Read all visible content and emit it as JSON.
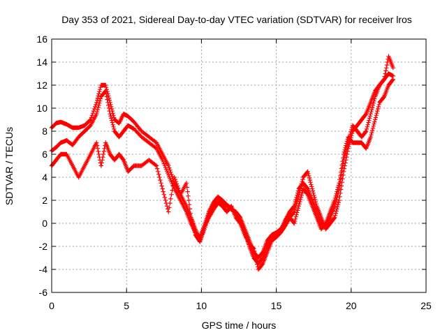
{
  "chart_data": {
    "type": "scatter",
    "title": "Day 353 of 2021, Sidereal Day-to-day VTEC variation (SDTVAR) for receiver lros",
    "xlabel": "GPS time / hours",
    "ylabel": "SDTVAR / TECUs",
    "xlim": [
      0,
      25
    ],
    "ylim": [
      -6,
      16
    ],
    "x_ticks": [
      0,
      5,
      10,
      15,
      20,
      25
    ],
    "y_ticks": [
      -6,
      -4,
      -2,
      0,
      2,
      4,
      6,
      8,
      10,
      12,
      14,
      16
    ],
    "grid": true,
    "marker": "+",
    "color": "#ff0000",
    "series": [
      {
        "x": [
          0.0,
          0.3,
          0.6,
          1.0,
          1.4,
          1.8,
          2.2,
          2.6,
          3.0,
          3.3,
          3.6,
          3.9,
          4.2,
          4.5,
          4.8,
          5.1,
          5.5,
          6.0,
          6.5,
          7.0,
          7.4,
          7.8,
          8.2,
          8.6,
          9.0,
          9.3,
          9.6,
          9.9,
          10.2,
          10.5,
          10.8,
          11.1,
          11.4,
          11.7,
          12.0,
          12.3,
          12.6,
          12.9,
          13.2,
          13.5,
          13.8,
          14.1,
          14.4,
          14.7,
          15.0,
          15.3,
          15.6,
          15.9,
          16.2,
          16.5,
          16.8,
          17.1,
          17.4,
          17.7,
          18.0,
          18.3,
          18.6,
          18.9,
          19.2,
          19.5,
          19.8,
          20.1,
          20.4,
          20.7,
          21.0,
          21.3,
          21.6,
          21.9,
          22.2,
          22.5,
          22.8
        ],
        "y": [
          8.3,
          8.7,
          8.8,
          8.6,
          8.3,
          8.3,
          8.5,
          9.0,
          10.5,
          12.0,
          12.0,
          10.5,
          9.0,
          8.7,
          9.5,
          9.3,
          8.8,
          8.0,
          7.5,
          7.0,
          6.0,
          5.0,
          3.5,
          2.5,
          1.5,
          0.5,
          -0.5,
          -1.5,
          -0.5,
          0.8,
          1.5,
          2.0,
          1.8,
          1.5,
          1.2,
          1.0,
          0.5,
          -0.5,
          -1.5,
          -2.5,
          -3.0,
          -2.5,
          -1.5,
          -1.0,
          -0.8,
          -0.5,
          0.0,
          0.5,
          1.0,
          2.5,
          4.0,
          4.5,
          3.0,
          1.5,
          0.5,
          -0.5,
          0.0,
          0.5,
          2.0,
          4.5,
          6.5,
          8.0,
          8.5,
          9.0,
          9.5,
          10.5,
          11.5,
          12.0,
          12.5,
          13.0,
          12.8
        ]
      },
      {
        "x": [
          0.0,
          0.3,
          0.6,
          1.0,
          1.4,
          1.8,
          2.2,
          2.6,
          3.0,
          3.3,
          3.6,
          3.9,
          4.2,
          4.5,
          4.8,
          5.1,
          5.5,
          6.0,
          6.5,
          7.0,
          7.4,
          7.8,
          8.2,
          8.6,
          9.0,
          9.3,
          9.6,
          9.9,
          10.2,
          10.5,
          10.8,
          11.1,
          11.4,
          11.7,
          12.0,
          12.3,
          12.6,
          12.9,
          13.2,
          13.5,
          13.8,
          14.1,
          14.4,
          14.7,
          15.0,
          15.3,
          15.6,
          15.9,
          16.2,
          16.5,
          16.8,
          17.1,
          17.4,
          17.7,
          18.0,
          18.3,
          18.6,
          18.9,
          19.2,
          19.5,
          19.8,
          20.1,
          20.4,
          20.7,
          21.0,
          21.3,
          21.6,
          21.9,
          22.2,
          22.5,
          22.8
        ],
        "y": [
          6.3,
          6.6,
          7.0,
          7.2,
          6.8,
          7.5,
          8.0,
          8.5,
          9.5,
          11.0,
          11.5,
          9.5,
          8.0,
          7.5,
          8.0,
          8.5,
          8.2,
          7.5,
          7.0,
          6.5,
          5.5,
          4.2,
          3.0,
          2.0,
          1.0,
          0.0,
          -0.8,
          -1.2,
          -0.2,
          1.0,
          1.8,
          2.3,
          2.0,
          1.6,
          1.3,
          0.8,
          0.2,
          -0.8,
          -2.0,
          -3.0,
          -3.5,
          -3.0,
          -2.0,
          -1.2,
          -1.0,
          -0.6,
          0.3,
          1.0,
          1.5,
          3.0,
          3.5,
          3.0,
          2.0,
          1.0,
          0.0,
          -0.3,
          0.5,
          1.5,
          3.0,
          5.5,
          7.0,
          8.5,
          8.0,
          7.5,
          8.0,
          9.5,
          11.0,
          12.0,
          12.5,
          14.5,
          13.5
        ]
      },
      {
        "x": [
          0.0,
          0.3,
          0.6,
          1.0,
          1.4,
          1.8,
          2.2,
          2.6,
          3.0,
          3.3,
          3.6,
          3.9,
          4.2,
          4.5,
          4.8,
          5.1,
          5.5,
          6.0,
          6.5,
          7.0,
          7.4,
          7.8,
          8.2,
          8.6,
          9.0,
          9.3,
          9.6,
          9.9,
          10.2,
          10.5,
          10.8,
          11.1,
          11.4,
          11.7,
          12.0,
          12.3,
          12.6,
          12.9,
          13.2,
          13.5,
          13.8,
          14.1,
          14.4,
          14.7,
          15.0,
          15.3,
          15.6,
          15.9,
          16.2,
          16.5,
          16.8,
          17.1,
          17.4,
          17.7,
          18.0,
          18.3,
          18.6,
          18.9,
          19.2,
          19.5,
          19.8,
          20.1,
          20.4,
          20.7,
          21.0,
          21.3,
          21.6,
          21.9,
          22.2,
          22.5,
          22.8
        ],
        "y": [
          5.0,
          5.5,
          6.0,
          6.0,
          5.0,
          4.0,
          5.0,
          6.0,
          7.0,
          5.0,
          7.0,
          6.0,
          5.5,
          6.0,
          5.5,
          4.5,
          5.0,
          5.0,
          5.5,
          5.0,
          3.0,
          1.0,
          4.0,
          2.5,
          3.5,
          0.5,
          -1.0,
          -1.6,
          -0.3,
          0.5,
          1.2,
          1.8,
          1.5,
          1.0,
          1.5,
          0.5,
          0.0,
          -1.0,
          -1.8,
          -2.2,
          -4.0,
          -3.5,
          -2.5,
          -1.5,
          -1.2,
          -0.8,
          -0.2,
          0.5,
          0.0,
          1.5,
          3.0,
          2.5,
          1.5,
          0.5,
          -0.5,
          0.0,
          1.0,
          2.0,
          3.5,
          6.0,
          7.5,
          7.0,
          7.0,
          7.0,
          6.5,
          7.5,
          9.0,
          10.5,
          11.0,
          12.0,
          12.5
        ]
      }
    ]
  }
}
